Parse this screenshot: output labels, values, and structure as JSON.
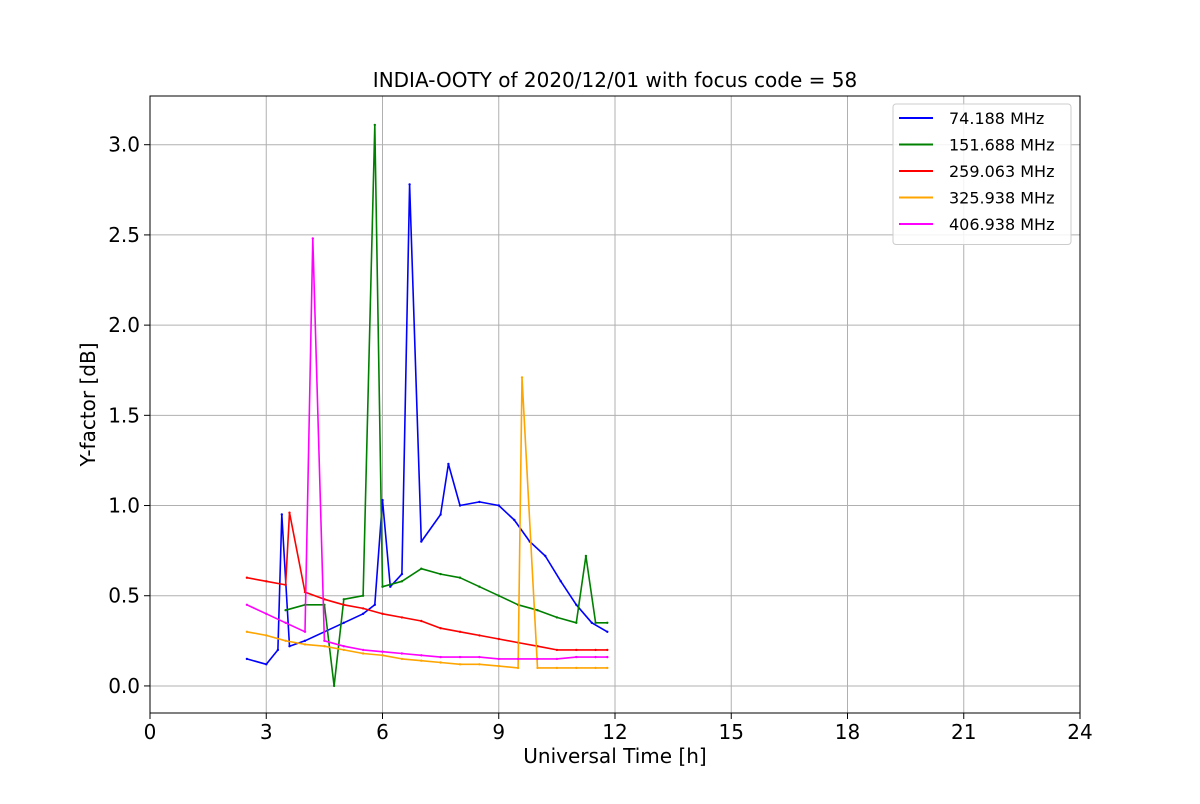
{
  "chart_data": {
    "type": "line",
    "title": "INDIA-OOTY of 2020/12/01 with focus code = 58",
    "xlabel": "Universal Time [h]",
    "ylabel": "Y-factor [dB]",
    "xlim": [
      0,
      24
    ],
    "ylim": [
      -0.15,
      3.27
    ],
    "xticks": [
      0,
      3,
      6,
      9,
      12,
      15,
      18,
      21,
      24
    ],
    "xtick_labels": [
      "0",
      "3",
      "6",
      "9",
      "12",
      "15",
      "18",
      "21",
      "24"
    ],
    "yticks": [
      0.0,
      0.5,
      1.0,
      1.5,
      2.0,
      2.5,
      3.0
    ],
    "ytick_labels": [
      "0.0",
      "0.5",
      "1.0",
      "1.5",
      "2.0",
      "2.5",
      "3.0"
    ],
    "grid": true,
    "legend_position": "upper-right",
    "series": [
      {
        "name": " 74.188 MHz",
        "color": "#0000ff",
        "x": [
          2.5,
          3.0,
          3.3,
          3.4,
          3.6,
          4.0,
          4.5,
          5.0,
          5.5,
          5.8,
          6.0,
          6.2,
          6.5,
          6.7,
          7.0,
          7.5,
          7.7,
          8.0,
          8.5,
          9.0,
          9.4,
          9.8,
          10.2,
          10.6,
          11.0,
          11.4,
          11.8
        ],
        "y": [
          0.15,
          0.12,
          0.2,
          0.95,
          0.22,
          0.25,
          0.3,
          0.35,
          0.4,
          0.45,
          1.03,
          0.55,
          0.62,
          2.78,
          0.8,
          0.95,
          1.23,
          1.0,
          1.02,
          1.0,
          0.92,
          0.8,
          0.72,
          0.58,
          0.45,
          0.35,
          0.3
        ]
      },
      {
        "name": "151.688 MHz",
        "color": "#008000",
        "x": [
          3.5,
          4.0,
          4.5,
          4.75,
          5.0,
          5.5,
          5.8,
          6.0,
          6.5,
          7.0,
          7.5,
          8.0,
          8.5,
          9.0,
          9.5,
          10.0,
          10.5,
          11.0,
          11.25,
          11.5,
          11.8
        ],
        "y": [
          0.42,
          0.45,
          0.45,
          0.0,
          0.48,
          0.5,
          3.11,
          0.55,
          0.58,
          0.65,
          0.62,
          0.6,
          0.55,
          0.5,
          0.45,
          0.42,
          0.38,
          0.35,
          0.72,
          0.35,
          0.35
        ]
      },
      {
        "name": "259.063 MHz",
        "color": "#ff0000",
        "x": [
          2.5,
          3.0,
          3.5,
          3.6,
          4.0,
          4.5,
          5.0,
          5.5,
          6.0,
          6.5,
          7.0,
          7.5,
          8.0,
          8.5,
          9.0,
          9.5,
          10.0,
          10.5,
          11.0,
          11.5,
          11.8
        ],
        "y": [
          0.6,
          0.58,
          0.56,
          0.96,
          0.52,
          0.48,
          0.45,
          0.43,
          0.4,
          0.38,
          0.36,
          0.32,
          0.3,
          0.28,
          0.26,
          0.24,
          0.22,
          0.2,
          0.2,
          0.2,
          0.2
        ]
      },
      {
        "name": "325.938 MHz",
        "color": "#ffa500",
        "x": [
          2.5,
          3.0,
          3.5,
          4.0,
          4.5,
          5.0,
          5.5,
          6.0,
          6.5,
          7.0,
          7.5,
          8.0,
          8.5,
          9.0,
          9.5,
          9.6,
          10.0,
          10.5,
          11.0,
          11.5,
          11.8
        ],
        "y": [
          0.3,
          0.28,
          0.25,
          0.23,
          0.22,
          0.2,
          0.18,
          0.17,
          0.15,
          0.14,
          0.13,
          0.12,
          0.12,
          0.11,
          0.1,
          1.71,
          0.1,
          0.1,
          0.1,
          0.1,
          0.1
        ]
      },
      {
        "name": "406.938 MHz",
        "color": "#ff00ff",
        "x": [
          2.5,
          3.0,
          3.5,
          4.0,
          4.2,
          4.5,
          5.0,
          5.5,
          6.0,
          6.5,
          7.0,
          7.5,
          8.0,
          8.5,
          9.0,
          9.5,
          10.0,
          10.5,
          11.0,
          11.5,
          11.8
        ],
        "y": [
          0.45,
          0.4,
          0.35,
          0.3,
          2.48,
          0.25,
          0.22,
          0.2,
          0.19,
          0.18,
          0.17,
          0.16,
          0.16,
          0.16,
          0.15,
          0.15,
          0.15,
          0.15,
          0.16,
          0.16,
          0.16
        ]
      }
    ]
  }
}
